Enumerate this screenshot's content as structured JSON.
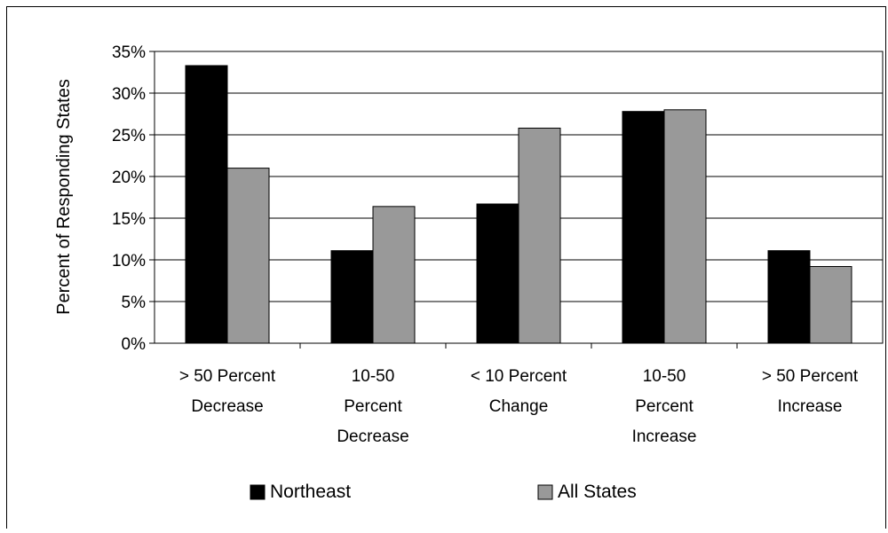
{
  "chart_data": {
    "type": "bar",
    "title": "",
    "xlabel": "",
    "ylabel": "Percent of Responding States",
    "ylim": [
      0,
      35
    ],
    "yticks": [
      "0%",
      "5%",
      "10%",
      "15%",
      "20%",
      "25%",
      "30%",
      "35%"
    ],
    "ytick_values": [
      0,
      5,
      10,
      15,
      20,
      25,
      30,
      35
    ],
    "categories": [
      [
        "> 50 Percent",
        "Decrease"
      ],
      [
        "10-50",
        "Percent",
        "Decrease"
      ],
      [
        "< 10 Percent",
        "Change"
      ],
      [
        "10-50",
        "Percent",
        "Increase"
      ],
      [
        "> 50 Percent",
        "Increase"
      ]
    ],
    "series": [
      {
        "name": "Northeast",
        "color": "#000000",
        "values": [
          33.3,
          11.1,
          16.7,
          27.8,
          11.1
        ]
      },
      {
        "name": "All States",
        "color": "#999999",
        "values": [
          21.0,
          16.4,
          25.8,
          28.0,
          9.2
        ]
      }
    ],
    "grid": true,
    "legend_position": "bottom"
  }
}
